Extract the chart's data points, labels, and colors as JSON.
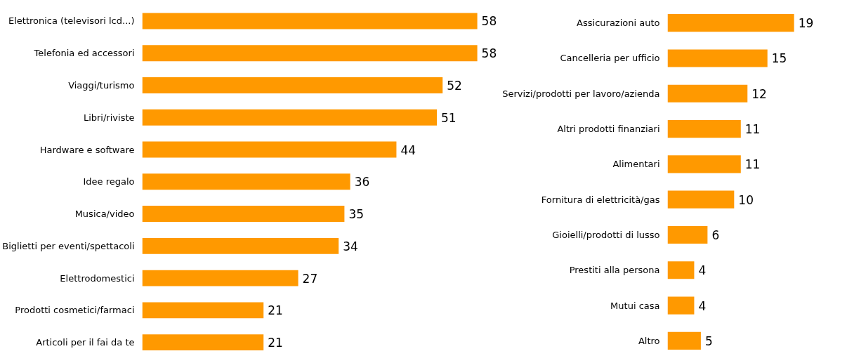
{
  "chart_data": [
    {
      "type": "bar",
      "orientation": "horizontal",
      "tick_labels": "y",
      "data_labels": true,
      "color": "#ff9900",
      "categories": [
        "Elettronica (televisori lcd...)",
        "Telefonia ed accessori",
        "Viaggi/turismo",
        "Libri/riviste",
        "Hardware e software",
        "Idee regalo",
        "Musica/video",
        "Biglietti per eventi/spettacoli",
        "Elettrodomestici",
        "Prodotti cosmetici/farmaci",
        "Articoli per il fai da te"
      ],
      "values": [
        58,
        58,
        52,
        51,
        44,
        36,
        35,
        34,
        27,
        21,
        21
      ]
    },
    {
      "type": "bar",
      "orientation": "horizontal",
      "tick_labels": "y",
      "data_labels": true,
      "color": "#ff9900",
      "categories": [
        "Assicurazioni auto",
        "Cancelleria per ufficio",
        "Servizi/prodotti per lavoro/azienda",
        "Altri prodotti finanziari",
        "Alimentari",
        "Fornitura di elettricità/gas",
        "Gioielli/prodotti di lusso",
        "Prestiti alla persona",
        "Mutui casa",
        "Altro"
      ],
      "values": [
        19,
        15,
        12,
        11,
        11,
        10,
        6,
        4,
        4,
        5
      ]
    }
  ]
}
